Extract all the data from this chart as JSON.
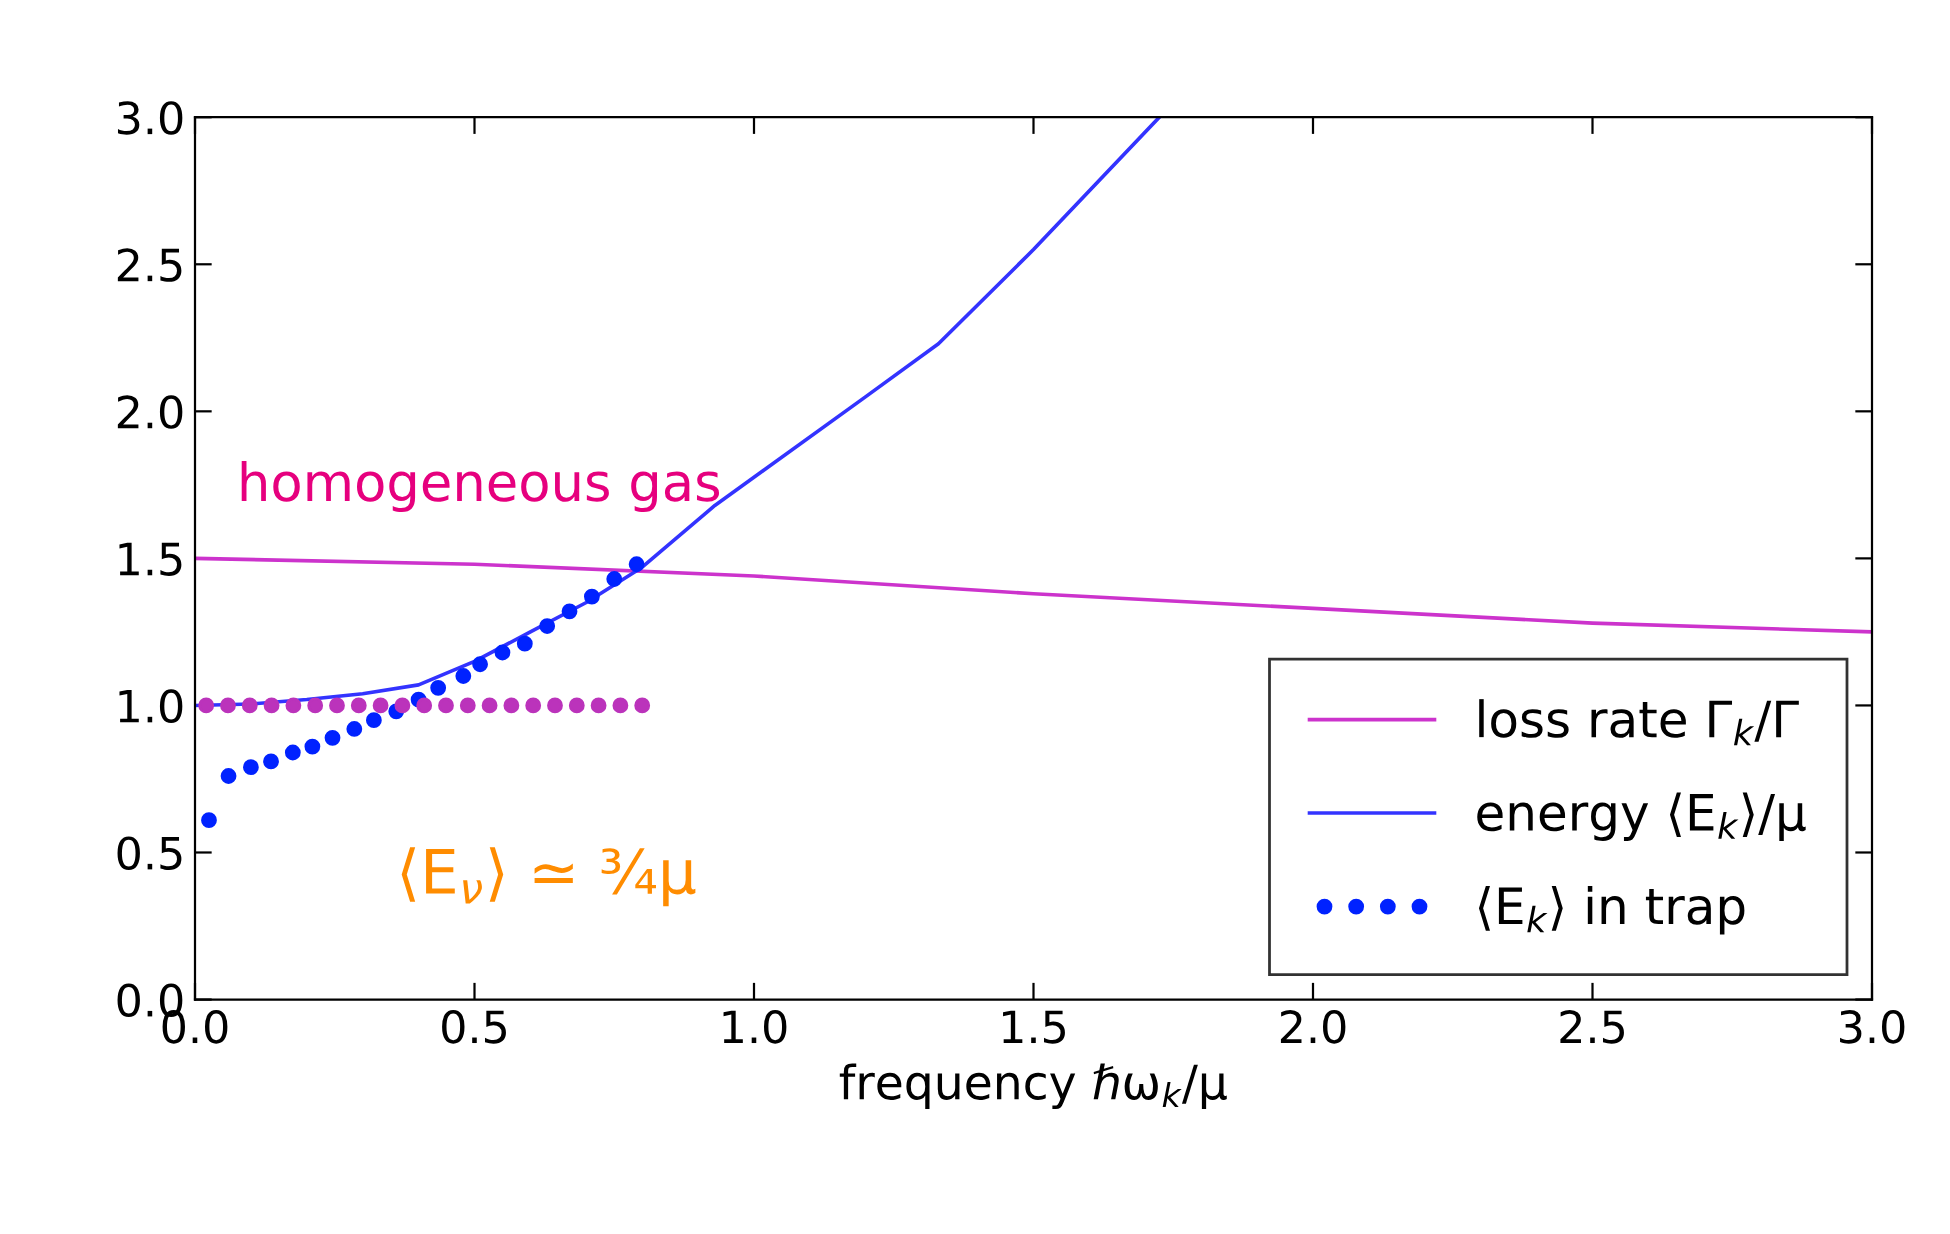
{
  "chart_data": {
    "type": "line",
    "xlabel": "frequency ℏω$_{k}$/μ",
    "xlim": [
      0,
      3.0
    ],
    "ylim": [
      0,
      3.0
    ],
    "xticks": [
      {
        "value": 0,
        "label": "0.0"
      },
      {
        "value": 0.5,
        "label": "0.5"
      },
      {
        "value": 1,
        "label": "1.0"
      },
      {
        "value": 1.5,
        "label": "1.5"
      },
      {
        "value": 2,
        "label": "2.0"
      },
      {
        "value": 2.5,
        "label": "2.5"
      },
      {
        "value": 3,
        "label": "3.0"
      }
    ],
    "yticks": [
      {
        "value": 0,
        "label": "0.0"
      },
      {
        "value": 0.5,
        "label": "0.5"
      },
      {
        "value": 1,
        "label": "1.0"
      },
      {
        "value": 1.5,
        "label": "1.5"
      },
      {
        "value": 2,
        "label": "2.0"
      },
      {
        "value": 2.5,
        "label": "2.5"
      },
      {
        "value": 3,
        "label": "3.0"
      }
    ],
    "grid": false,
    "legend": "bottom right",
    "series": [
      {
        "name": "loss rate Γ$_{k}$/Γ",
        "color": "#cc33cc",
        "line_style": "solid",
        "x": [
          0,
          0.5,
          1.0,
          1.5,
          2.0,
          2.5,
          3.0
        ],
        "values": [
          1.5,
          1.48,
          1.44,
          1.38,
          1.33,
          1.28,
          1.25
        ]
      },
      {
        "name": "energy ⟨E$_{k}$⟩/μ",
        "color": "#3333ff",
        "line_style": "solid",
        "x": [
          0,
          0.1,
          0.2,
          0.3,
          0.4,
          0.5,
          0.6,
          0.7,
          0.8,
          0.93,
          1.2,
          1.33,
          1.5,
          1.725
        ],
        "values": [
          1.0,
          1.005,
          1.02,
          1.04,
          1.07,
          1.15,
          1.25,
          1.35,
          1.47,
          1.68,
          2.05,
          2.23,
          2.55,
          3.0
        ]
      },
      {
        "name": "⟨E$_{k}$⟩ in trap",
        "type": "scatter",
        "marker": "circle",
        "color": "#0022ff",
        "x": [
          0.025,
          0.06,
          0.1,
          0.136,
          0.175,
          0.21,
          0.246,
          0.285,
          0.32,
          0.36,
          0.4,
          0.435,
          0.48,
          0.51,
          0.55,
          0.59,
          0.63,
          0.67,
          0.71,
          0.75,
          0.79
        ],
        "values": [
          0.61,
          0.76,
          0.79,
          0.81,
          0.84,
          0.86,
          0.89,
          0.92,
          0.95,
          0.98,
          1.02,
          1.06,
          1.1,
          1.14,
          1.18,
          1.21,
          1.27,
          1.32,
          1.37,
          1.43,
          1.48
        ]
      },
      {
        "type": "scatter",
        "marker": "circle",
        "color": "#bb33bb",
        "x": [
          0.02,
          0.059,
          0.098,
          0.137,
          0.176,
          0.215,
          0.254,
          0.293,
          0.332,
          0.371,
          0.41,
          0.449,
          0.488,
          0.527,
          0.566,
          0.605,
          0.644,
          0.683,
          0.722,
          0.761,
          0.8
        ],
        "values": [
          1,
          1,
          1,
          1,
          1,
          1,
          1,
          1,
          1,
          1,
          1,
          1,
          1,
          1,
          1,
          1,
          1,
          1,
          1,
          1,
          1
        ]
      }
    ],
    "annotations": [
      "homogeneous gas",
      "⟨E$_{ν}$⟩ ≃ ¾μ"
    ]
  }
}
